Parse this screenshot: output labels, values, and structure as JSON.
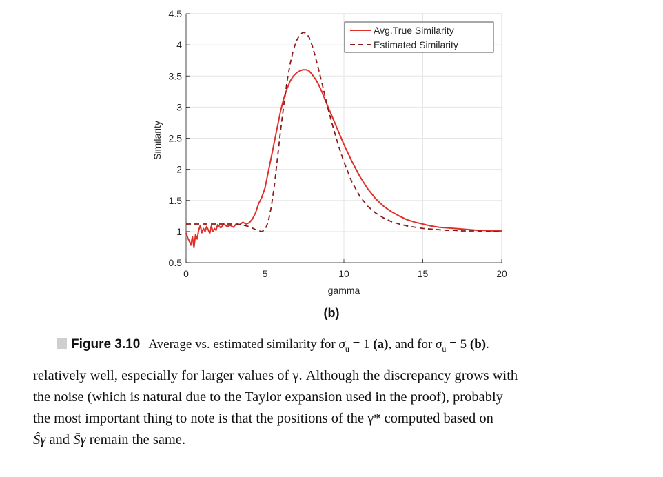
{
  "chart_data": {
    "type": "line",
    "xlabel": "gamma",
    "ylabel": "Similarity",
    "xlim": [
      0,
      20
    ],
    "ylim": [
      0.5,
      4.5
    ],
    "xticks": [
      "0",
      "5",
      "10",
      "15",
      "20"
    ],
    "yticks": [
      "0.5",
      "1",
      "1.5",
      "2",
      "2.5",
      "3",
      "3.5",
      "4",
      "4.5"
    ],
    "grid": true,
    "legend_position": "top-right",
    "series": [
      {
        "name": "Avg.True Similarity",
        "style": "solid",
        "color": "#e0302a",
        "x": [
          0.0,
          0.1,
          0.2,
          0.3,
          0.4,
          0.5,
          0.6,
          0.7,
          0.8,
          0.9,
          1.0,
          1.1,
          1.2,
          1.3,
          1.4,
          1.5,
          1.6,
          1.7,
          1.8,
          1.9,
          2.0,
          2.2,
          2.4,
          2.6,
          2.8,
          3.0,
          3.2,
          3.4,
          3.6,
          3.8,
          4.0,
          4.2,
          4.4,
          4.6,
          4.8,
          5.0,
          5.2,
          5.4,
          5.6,
          5.8,
          6.0,
          6.2,
          6.4,
          6.6,
          6.8,
          7.0,
          7.2,
          7.4,
          7.6,
          7.8,
          8.0,
          8.2,
          8.4,
          8.6,
          8.8,
          9.0,
          9.2,
          9.4,
          9.6,
          9.8,
          10.0,
          10.5,
          11.0,
          11.5,
          12.0,
          12.5,
          13.0,
          13.5,
          14.0,
          14.5,
          15.0,
          15.5,
          16.0,
          16.5,
          17.0,
          17.5,
          18.0,
          18.5,
          19.0,
          19.5,
          20.0
        ],
        "y": [
          0.98,
          0.9,
          0.85,
          0.78,
          0.92,
          0.74,
          0.95,
          0.88,
          1.02,
          1.1,
          0.98,
          1.05,
          1.0,
          1.08,
          1.03,
          0.97,
          1.09,
          1.0,
          1.05,
          1.02,
          1.11,
          1.06,
          1.12,
          1.08,
          1.1,
          1.07,
          1.13,
          1.11,
          1.15,
          1.12,
          1.14,
          1.2,
          1.3,
          1.45,
          1.55,
          1.7,
          1.95,
          2.2,
          2.45,
          2.7,
          2.95,
          3.15,
          3.3,
          3.42,
          3.5,
          3.55,
          3.58,
          3.6,
          3.6,
          3.58,
          3.52,
          3.45,
          3.36,
          3.25,
          3.12,
          3.0,
          2.88,
          2.76,
          2.64,
          2.52,
          2.4,
          2.13,
          1.89,
          1.69,
          1.53,
          1.41,
          1.32,
          1.25,
          1.19,
          1.15,
          1.12,
          1.09,
          1.07,
          1.06,
          1.05,
          1.04,
          1.03,
          1.02,
          1.02,
          1.01,
          1.01
        ]
      },
      {
        "name": "Estimated Similarity",
        "style": "dashed",
        "color": "#8b1a1a",
        "x": [
          0.0,
          0.5,
          1.0,
          1.5,
          2.0,
          2.5,
          3.0,
          3.5,
          4.0,
          4.5,
          4.8,
          5.0,
          5.2,
          5.4,
          5.6,
          5.8,
          6.0,
          6.2,
          6.4,
          6.6,
          6.8,
          7.0,
          7.2,
          7.4,
          7.6,
          7.8,
          8.0,
          8.2,
          8.4,
          8.6,
          8.8,
          9.0,
          9.2,
          9.4,
          9.6,
          9.8,
          10.0,
          10.5,
          11.0,
          11.5,
          12.0,
          12.5,
          13.0,
          13.5,
          14.0,
          14.5,
          15.0,
          15.5,
          16.0,
          16.5,
          17.0,
          17.5,
          18.0,
          18.5,
          19.0,
          19.5,
          20.0
        ],
        "y": [
          1.12,
          1.12,
          1.12,
          1.12,
          1.12,
          1.12,
          1.12,
          1.11,
          1.08,
          1.02,
          1.0,
          1.03,
          1.15,
          1.4,
          1.75,
          2.2,
          2.65,
          3.05,
          3.42,
          3.7,
          3.92,
          4.07,
          4.16,
          4.2,
          4.19,
          4.12,
          3.98,
          3.8,
          3.6,
          3.4,
          3.18,
          2.97,
          2.78,
          2.6,
          2.43,
          2.27,
          2.12,
          1.8,
          1.57,
          1.41,
          1.3,
          1.22,
          1.16,
          1.12,
          1.09,
          1.07,
          1.05,
          1.04,
          1.03,
          1.02,
          1.02,
          1.01,
          1.01,
          1.01,
          1.0,
          1.0,
          1.0
        ]
      }
    ]
  },
  "figure": {
    "sub_label": "(b)",
    "caption_label": "Figure 3.10",
    "caption_text_1": "Average vs. estimated similarity for ",
    "caption_sigma": "σ",
    "caption_sub": "u",
    "caption_val_a": " = 1 ",
    "caption_a": "(a)",
    "caption_mid": ", and for ",
    "caption_val_b": " = 5 ",
    "caption_b": "(b)",
    "caption_end": "."
  },
  "body": {
    "line1": "relatively well, especially for larger values of γ. Although the discrepancy grows with",
    "line2": "the noise (which is natural due to the Taylor expansion used in the proof), probably",
    "line3": "the most important thing to note is that the positions of the γ* computed based on",
    "line4_s1": "Ŝγ",
    "line4_and": " and ",
    "line4_s2": "S̄γ",
    "line4_rest": " remain the same."
  }
}
